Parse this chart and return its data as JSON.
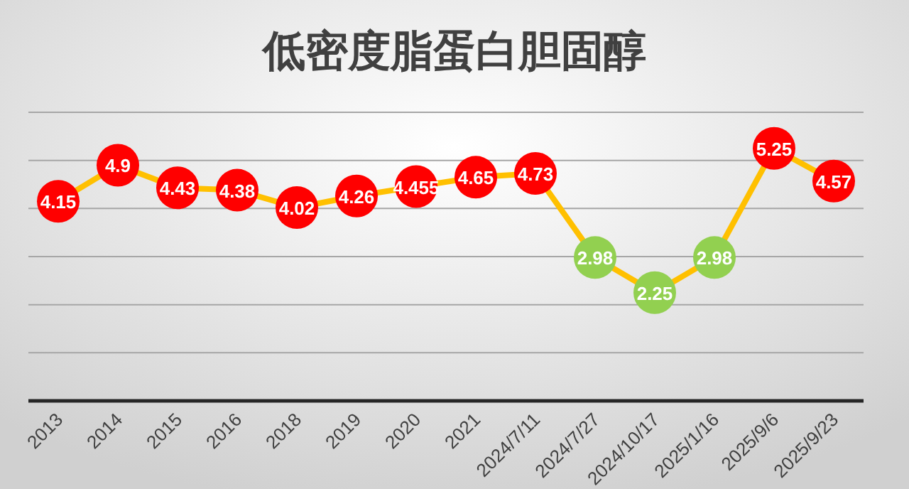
{
  "chart_data": {
    "type": "line",
    "title": "低密度脂蛋白胆固醇",
    "categories": [
      "2013",
      "2014",
      "2015",
      "2016",
      "2018",
      "2019",
      "2020",
      "2021",
      "2024/7/11",
      "2024/7/27",
      "2024/10/17",
      "2025/1/16",
      "2025/9/6",
      "2025/9/23"
    ],
    "series": [
      {
        "color": "#ffc000",
        "colors": [
          "#ff0000",
          "#ff0000",
          "#ff0000",
          "#ff0000",
          "#ff0000",
          "#ff0000",
          "#ff0000",
          "#ff0000",
          "#ff0000",
          "#92d050",
          "#92d050",
          "#92d050",
          "#ff0000",
          "#ff0000"
        ],
        "values": [
          4.15,
          4.9,
          4.43,
          4.38,
          4.02,
          4.26,
          4.455,
          4.65,
          4.73,
          2.98,
          2.25,
          2.98,
          5.25,
          4.57
        ]
      }
    ],
    "ylim": [
      0,
      6
    ],
    "yticks": [
      {
        "value": 0,
        "label": null
      },
      {
        "value": 1,
        "label": null
      },
      {
        "value": 2,
        "label": null
      },
      {
        "value": 3,
        "label": null
      },
      {
        "value": 4,
        "label": null
      },
      {
        "value": 5,
        "label": null
      },
      {
        "value": 6,
        "label": null
      }
    ],
    "tick_labels": "x",
    "grid": "y",
    "marker": "circle",
    "line_style": "solid",
    "data_labels": true
  }
}
